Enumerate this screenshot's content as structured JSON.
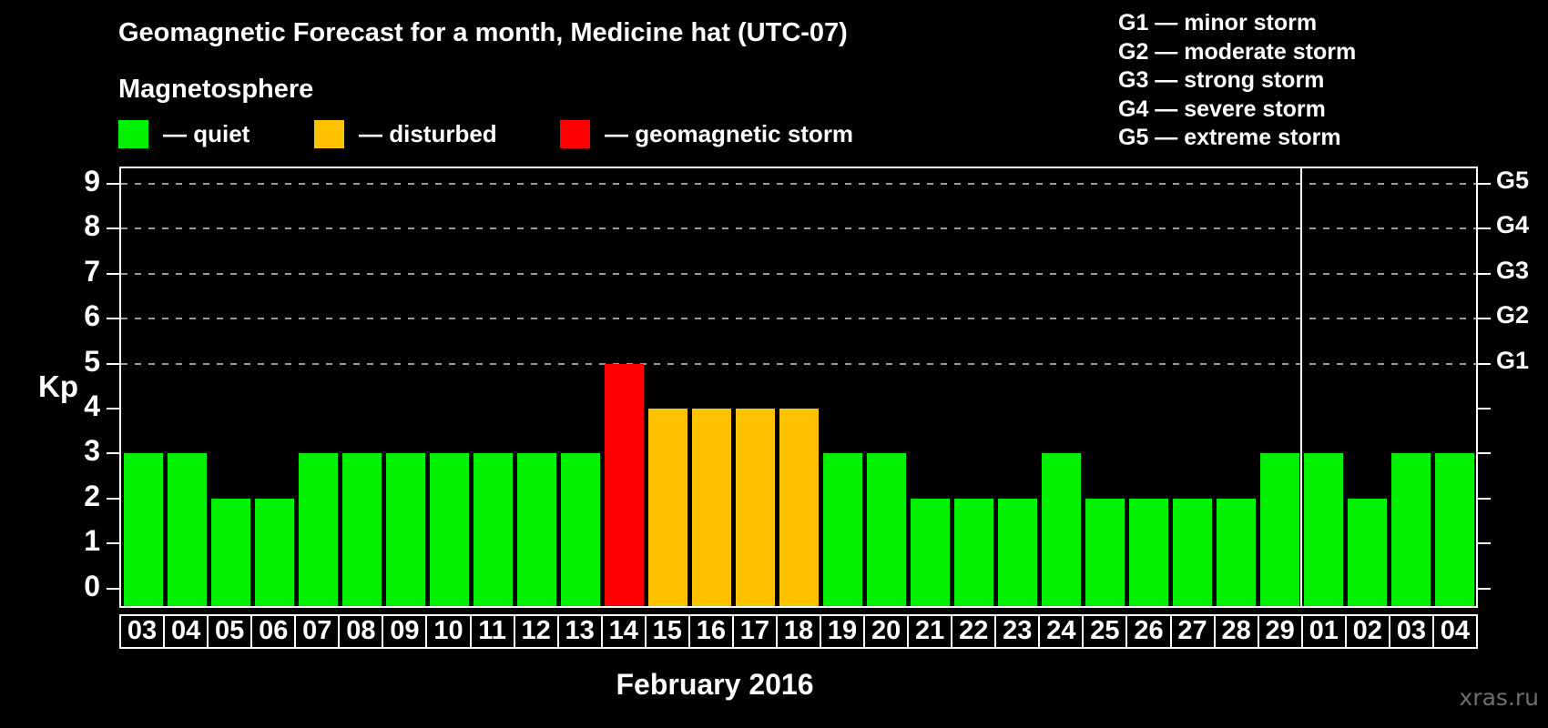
{
  "header": {
    "title": "Geomagnetic Forecast for a month, Medicine hat (UTC-07)",
    "subtitle": "Magnetosphere"
  },
  "legend": {
    "items": [
      {
        "label": "— quiet",
        "state": "quiet",
        "color": "#00f000"
      },
      {
        "label": "— disturbed",
        "state": "disturbed",
        "color": "#ffc200"
      },
      {
        "label": "— geomagnetic storm",
        "state": "storm",
        "color": "#ff0000"
      }
    ]
  },
  "g_legend": {
    "items": [
      "G1 — minor storm",
      "G2 — moderate storm",
      "G3 — strong storm",
      "G4 — severe storm",
      "G5 — extreme storm"
    ]
  },
  "chart_data": {
    "type": "bar",
    "title": "Geomagnetic Forecast for a month, Medicine hat (UTC-07)",
    "xlabel": "February 2016",
    "ylabel": "Kp",
    "ylim": [
      0,
      9
    ],
    "yticks": [
      0,
      1,
      2,
      3,
      4,
      5,
      6,
      7,
      8,
      9
    ],
    "gridlines_at": [
      5,
      6,
      7,
      8,
      9
    ],
    "right_axis_labels": [
      {
        "label": "G1",
        "kp": 5
      },
      {
        "label": "G2",
        "kp": 6
      },
      {
        "label": "G3",
        "kp": 7
      },
      {
        "label": "G4",
        "kp": 8
      },
      {
        "label": "G5",
        "kp": 9
      }
    ],
    "legend_position": "top-left",
    "grid": "dashed horizontal at storm levels only",
    "categories": [
      "03",
      "04",
      "05",
      "06",
      "07",
      "08",
      "09",
      "10",
      "11",
      "12",
      "13",
      "14",
      "15",
      "16",
      "17",
      "18",
      "19",
      "20",
      "21",
      "22",
      "23",
      "24",
      "25",
      "26",
      "27",
      "28",
      "29",
      "01",
      "02",
      "03",
      "04"
    ],
    "values": [
      3,
      3,
      2,
      2,
      3,
      3,
      3,
      3,
      3,
      3,
      3,
      5,
      4,
      4,
      4,
      4,
      3,
      3,
      2,
      2,
      2,
      3,
      2,
      2,
      2,
      2,
      3,
      3,
      2,
      3,
      3
    ],
    "states": [
      "quiet",
      "quiet",
      "quiet",
      "quiet",
      "quiet",
      "quiet",
      "quiet",
      "quiet",
      "quiet",
      "quiet",
      "quiet",
      "storm",
      "disturbed",
      "disturbed",
      "disturbed",
      "disturbed",
      "quiet",
      "quiet",
      "quiet",
      "quiet",
      "quiet",
      "quiet",
      "quiet",
      "quiet",
      "quiet",
      "quiet",
      "quiet",
      "quiet",
      "quiet",
      "quiet",
      "quiet"
    ],
    "colors": {
      "quiet": "#00f000",
      "disturbed": "#ffc200",
      "storm": "#ff0000"
    },
    "month_boundary_after_index": 26
  },
  "footer": {
    "xlabel": "February 2016",
    "watermark": "xras.ru"
  }
}
